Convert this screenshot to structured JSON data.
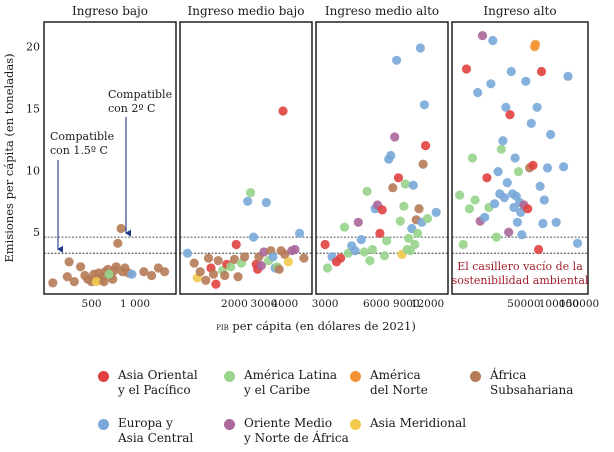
{
  "chart_data": {
    "type": "scatter",
    "ylabel": "Emisiones per cápita (en toneladas)",
    "xlabel_prefix": "PIB",
    "xlabel": "per cápita (en dólares de 2021)",
    "ylim": [
      0,
      22
    ],
    "y_ticks": [
      5,
      10,
      15,
      20
    ],
    "y_tick_labels": [
      "5",
      "10",
      "15",
      "20"
    ],
    "thresholds": [
      {
        "name": "compatible-2c",
        "value": 4.6,
        "label_lines": [
          "Compatible",
          "con 2º C"
        ]
      },
      {
        "name": "compatible-15c",
        "value": 3.3,
        "label_lines": [
          "Compatible",
          "con 1.5º C"
        ]
      }
    ],
    "panels": [
      {
        "key": "bajo",
        "title": "Ingreso bajo",
        "xlim": [
          250,
          1800
        ],
        "ticks": [
          500,
          1000
        ],
        "tick_labels": [
          "500",
          "1 000"
        ]
      },
      {
        "key": "medio-bajo",
        "title": "Ingreso medio bajo",
        "xlim": [
          1000,
          5500
        ],
        "ticks": [
          2000,
          3000,
          4000
        ],
        "tick_labels": [
          "2000",
          "3000",
          "4000"
        ]
      },
      {
        "key": "medio-alto",
        "title": "Ingreso medio alto",
        "xlim": [
          2800,
          15000
        ],
        "ticks": [
          3000,
          6000,
          9000,
          12000
        ],
        "tick_labels": [
          "3000",
          "6000",
          "9000",
          "12000"
        ]
      },
      {
        "key": "alto",
        "title": "Ingreso alto",
        "xlim": [
          13000,
          165000
        ],
        "ticks": [
          50000,
          100000,
          150000
        ],
        "tick_labels": [
          "50000",
          "100000",
          "150000"
        ]
      }
    ],
    "empty_box_label_lines": [
      "El casillero vacío de la",
      "sostenibilidad ambiental"
    ],
    "regions": [
      {
        "key": "eap",
        "name": "Asia Oriental y el Pacífico",
        "label_lines": [
          "Asia Oriental",
          "y el Pacífico"
        ],
        "color": "#e0413f"
      },
      {
        "key": "lac",
        "name": "América Latina y el Caribe",
        "label_lines": [
          "América Latina",
          "y el Caribe"
        ],
        "color": "#98d48c"
      },
      {
        "key": "nam",
        "name": "América del Norte",
        "label_lines": [
          "América",
          "del Norte"
        ],
        "color": "#f39336"
      },
      {
        "key": "ssa",
        "name": "África Subsahariana",
        "label_lines": [
          "África",
          "Subsahariana"
        ],
        "color": "#b57b57"
      },
      {
        "key": "eca",
        "name": "Europa y Asia Central",
        "label_lines": [
          "Europa y",
          "Asia Central"
        ],
        "color": "#79a8d8"
      },
      {
        "key": "mena",
        "name": "Oriente Medio y Norte de África",
        "label_lines": [
          "Oriente Medio",
          "y Norte de África"
        ],
        "color": "#a9679a"
      },
      {
        "key": "sas",
        "name": "Asia Meridional",
        "label_lines": [
          "Asia Meridional"
        ],
        "color": "#f2c94c"
      }
    ],
    "series": [
      {
        "panel": "bajo",
        "points": [
          [
            270,
            0.9,
            "ssa"
          ],
          [
            340,
            1.4,
            "ssa"
          ],
          [
            350,
            2.6,
            "ssa"
          ],
          [
            380,
            1.0,
            "ssa"
          ],
          [
            420,
            2.2,
            "ssa"
          ],
          [
            450,
            1.5,
            "ssa"
          ],
          [
            470,
            1.2,
            "ssa"
          ],
          [
            500,
            1.0,
            "ssa"
          ],
          [
            520,
            1.6,
            "ssa"
          ],
          [
            540,
            1.3,
            "ssa"
          ],
          [
            560,
            1.7,
            "ssa"
          ],
          [
            580,
            1.1,
            "ssa"
          ],
          [
            600,
            1.4,
            "ssa"
          ],
          [
            620,
            1.8,
            "ssa"
          ],
          [
            650,
            2.0,
            "ssa"
          ],
          [
            680,
            1.5,
            "ssa"
          ],
          [
            700,
            1.2,
            "ssa"
          ],
          [
            720,
            1.9,
            "ssa"
          ],
          [
            740,
            2.2,
            "ssa"
          ],
          [
            760,
            4.1,
            "ssa"
          ],
          [
            800,
            5.3,
            "ssa"
          ],
          [
            820,
            1.8,
            "ssa"
          ],
          [
            850,
            2.1,
            "ssa"
          ],
          [
            900,
            1.7,
            "ssa"
          ],
          [
            950,
            1.6,
            "eca"
          ],
          [
            1150,
            1.8,
            "ssa"
          ],
          [
            1300,
            1.5,
            "ssa"
          ],
          [
            1450,
            2.1,
            "ssa"
          ],
          [
            1600,
            1.8,
            "ssa"
          ],
          [
            540,
            1.0,
            "sas"
          ],
          [
            610,
            1.0,
            "ssa"
          ],
          [
            660,
            1.6,
            "lac"
          ]
        ]
      },
      {
        "panel": "medio-bajo",
        "points": [
          [
            1050,
            3.3,
            "eca"
          ],
          [
            1150,
            2.5,
            "ssa"
          ],
          [
            1200,
            1.3,
            "sas"
          ],
          [
            1250,
            1.8,
            "ssa"
          ],
          [
            1350,
            1.1,
            "ssa"
          ],
          [
            1400,
            2.9,
            "ssa"
          ],
          [
            1450,
            2.1,
            "eap"
          ],
          [
            1500,
            1.6,
            "ssa"
          ],
          [
            1550,
            0.8,
            "eap"
          ],
          [
            1600,
            2.7,
            "ssa"
          ],
          [
            1700,
            1.9,
            "lac"
          ],
          [
            1750,
            1.5,
            "ssa"
          ],
          [
            1800,
            2.4,
            "eap"
          ],
          [
            1900,
            2.2,
            "lac"
          ],
          [
            2000,
            2.8,
            "ssa"
          ],
          [
            2050,
            4.0,
            "eap"
          ],
          [
            2100,
            1.4,
            "ssa"
          ],
          [
            2200,
            2.5,
            "lac"
          ],
          [
            2300,
            3.0,
            "ssa"
          ],
          [
            2400,
            7.5,
            "eca"
          ],
          [
            2500,
            8.2,
            "lac"
          ],
          [
            2600,
            4.6,
            "eca"
          ],
          [
            2700,
            2.4,
            "eap"
          ],
          [
            2750,
            2.0,
            "eap"
          ],
          [
            2800,
            3.0,
            "ssa"
          ],
          [
            2900,
            2.3,
            "mena"
          ],
          [
            3000,
            3.4,
            "mena"
          ],
          [
            3100,
            7.4,
            "eca"
          ],
          [
            3200,
            2.7,
            "lac"
          ],
          [
            3300,
            3.5,
            "ssa"
          ],
          [
            3400,
            3.0,
            "eca"
          ],
          [
            3500,
            2.1,
            "eca"
          ],
          [
            3600,
            2.2,
            "lac"
          ],
          [
            3700,
            2.0,
            "ssa"
          ],
          [
            3800,
            3.5,
            "ssa"
          ],
          [
            3900,
            14.8,
            "eap"
          ],
          [
            4000,
            3.2,
            "ssa"
          ],
          [
            4200,
            2.6,
            "sas"
          ],
          [
            4400,
            3.5,
            "mena"
          ],
          [
            4600,
            3.6,
            "mena"
          ],
          [
            4900,
            4.9,
            "eca"
          ],
          [
            5200,
            2.9,
            "ssa"
          ]
        ]
      },
      {
        "panel": "medio-alto",
        "points": [
          [
            3000,
            4.0,
            "eap"
          ],
          [
            3100,
            2.1,
            "lac"
          ],
          [
            3300,
            3.0,
            "eca"
          ],
          [
            3500,
            2.6,
            "eap"
          ],
          [
            3700,
            2.9,
            "eap"
          ],
          [
            3900,
            5.4,
            "lac"
          ],
          [
            4100,
            3.3,
            "lac"
          ],
          [
            4300,
            3.9,
            "eca"
          ],
          [
            4500,
            3.5,
            "eca"
          ],
          [
            4700,
            5.8,
            "mena"
          ],
          [
            4900,
            4.4,
            "eca"
          ],
          [
            5100,
            3.4,
            "lac"
          ],
          [
            5300,
            8.3,
            "lac"
          ],
          [
            5500,
            2.7,
            "lac"
          ],
          [
            5700,
            3.6,
            "lac"
          ],
          [
            5900,
            6.9,
            "eca"
          ],
          [
            6100,
            7.2,
            "mena"
          ],
          [
            6300,
            4.9,
            "eap"
          ],
          [
            6500,
            6.8,
            "eap"
          ],
          [
            6700,
            3.1,
            "lac"
          ],
          [
            6900,
            4.3,
            "lac"
          ],
          [
            7100,
            10.9,
            "eca"
          ],
          [
            7300,
            11.2,
            "eca"
          ],
          [
            7500,
            8.6,
            "ssa"
          ],
          [
            7700,
            12.7,
            "mena"
          ],
          [
            7900,
            18.9,
            "eca"
          ],
          [
            8100,
            9.4,
            "eap"
          ],
          [
            8300,
            5.9,
            "lac"
          ],
          [
            8500,
            3.2,
            "sas"
          ],
          [
            8700,
            7.1,
            "lac"
          ],
          [
            8900,
            8.9,
            "lac"
          ],
          [
            9100,
            3.6,
            "lac"
          ],
          [
            9300,
            4.5,
            "lac"
          ],
          [
            9500,
            3.5,
            "lac"
          ],
          [
            9700,
            5.3,
            "eca"
          ],
          [
            9900,
            8.8,
            "eca"
          ],
          [
            10100,
            4.0,
            "lac"
          ],
          [
            10300,
            6.0,
            "ssa"
          ],
          [
            10500,
            4.9,
            "lac"
          ],
          [
            10700,
            6.9,
            "ssa"
          ],
          [
            10900,
            19.9,
            "eca"
          ],
          [
            11100,
            5.8,
            "eca"
          ],
          [
            11300,
            10.5,
            "ssa"
          ],
          [
            11500,
            15.3,
            "eca"
          ],
          [
            11700,
            12.0,
            "eap"
          ],
          [
            12000,
            6.1,
            "lac"
          ],
          [
            13500,
            6.6,
            "eca"
          ]
        ]
      },
      {
        "panel": "alto",
        "points": [
          [
            14000,
            8.0,
            "lac"
          ],
          [
            15000,
            4.0,
            "lac"
          ],
          [
            16000,
            18.2,
            "eap"
          ],
          [
            17000,
            6.9,
            "lac"
          ],
          [
            18000,
            11.0,
            "lac"
          ],
          [
            19000,
            7.6,
            "lac"
          ],
          [
            20000,
            16.3,
            "eca"
          ],
          [
            21000,
            5.9,
            "mena"
          ],
          [
            22000,
            20.9,
            "mena"
          ],
          [
            23000,
            6.2,
            "eca"
          ],
          [
            24000,
            9.4,
            "eap"
          ],
          [
            25000,
            7.0,
            "lac"
          ],
          [
            26000,
            17.0,
            "eca"
          ],
          [
            27000,
            20.5,
            "eca"
          ],
          [
            28000,
            7.3,
            "eca"
          ],
          [
            29000,
            4.6,
            "lac"
          ],
          [
            30000,
            9.9,
            "eca"
          ],
          [
            31000,
            8.1,
            "eca"
          ],
          [
            32000,
            11.7,
            "lac"
          ],
          [
            33000,
            12.4,
            "eca"
          ],
          [
            34000,
            7.8,
            "eca"
          ],
          [
            35000,
            15.1,
            "eca"
          ],
          [
            36000,
            9.0,
            "eca"
          ],
          [
            37000,
            5.0,
            "mena"
          ],
          [
            38000,
            14.5,
            "eap"
          ],
          [
            39000,
            18.0,
            "eca"
          ],
          [
            40000,
            8.1,
            "eca"
          ],
          [
            41000,
            7.0,
            "eca"
          ],
          [
            42000,
            11.0,
            "eca"
          ],
          [
            43000,
            7.9,
            "eca"
          ],
          [
            44000,
            5.8,
            "eca"
          ],
          [
            45000,
            9.9,
            "lac"
          ],
          [
            46000,
            7.4,
            "eca"
          ],
          [
            47000,
            6.6,
            "eca"
          ],
          [
            48000,
            4.8,
            "eca"
          ],
          [
            50000,
            7.2,
            "mena"
          ],
          [
            52000,
            17.2,
            "eca"
          ],
          [
            54000,
            6.9,
            "eap"
          ],
          [
            56000,
            10.2,
            "ssa"
          ],
          [
            58000,
            13.8,
            "eca"
          ],
          [
            60000,
            10.4,
            "eap"
          ],
          [
            62000,
            20.0,
            "nam"
          ],
          [
            63000,
            20.2,
            "nam"
          ],
          [
            65000,
            15.1,
            "eca"
          ],
          [
            67000,
            3.6,
            "eap"
          ],
          [
            69000,
            8.7,
            "eca"
          ],
          [
            71000,
            18.0,
            "eap"
          ],
          [
            73000,
            5.7,
            "eca"
          ],
          [
            75000,
            7.6,
            "eca"
          ],
          [
            80000,
            10.2,
            "eca"
          ],
          [
            85000,
            12.9,
            "eca"
          ],
          [
            95000,
            5.8,
            "eca"
          ],
          [
            110000,
            10.3,
            "eca"
          ],
          [
            120000,
            17.6,
            "eca"
          ],
          [
            145000,
            4.1,
            "eca"
          ]
        ]
      }
    ]
  }
}
